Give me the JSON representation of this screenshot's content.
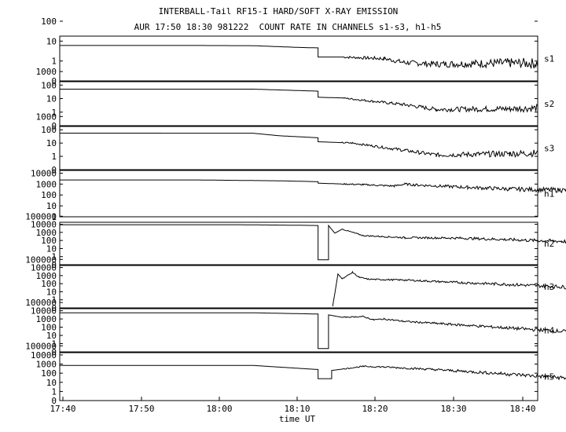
{
  "chart_data": {
    "type": "line",
    "title": "INTERBALL-Tail RF15-I HARD/SOFT X-RAY EMISSION",
    "subtitle": "AUR 17:50 18:30 981222  COUNT RATE IN CHANNELS s1-s3, h1-h5",
    "xlabel": "time UT",
    "x_ticks": [
      "17:40",
      "17:50",
      "18:00",
      "18:10",
      "18:20",
      "18:30",
      "18:40"
    ],
    "x_range_minutes": [
      17.0,
      62.7
    ],
    "grid": false,
    "series": [
      {
        "name": "s1",
        "y_scale": "log",
        "y_ticks": [
          "100",
          "10",
          "1",
          "0"
        ],
        "y_range_decades": [
          0,
          2.25
        ],
        "points": [
          [
            17,
            1.78
          ],
          [
            30,
            1.78
          ],
          [
            35.5,
            1.77
          ],
          [
            38,
            1.72
          ],
          [
            40,
            1.68
          ],
          [
            41.7,
            1.66
          ],
          [
            41.7,
            1.2
          ],
          [
            44,
            1.2
          ],
          [
            48,
            1.12
          ],
          [
            50,
            0.92
          ],
          [
            53,
            0.84
          ],
          [
            60,
            0.9
          ],
          [
            62.7,
            0.88
          ]
        ]
      },
      {
        "name": "s2",
        "y_scale": "log",
        "y_ticks": [
          "1000",
          "100",
          "10",
          "1",
          "0"
        ],
        "y_range_decades": [
          0,
          3.25
        ],
        "points": [
          [
            17,
            2.7
          ],
          [
            35.5,
            2.7
          ],
          [
            41.7,
            2.55
          ],
          [
            41.7,
            2.1
          ],
          [
            44,
            2.05
          ],
          [
            50,
            1.55
          ],
          [
            53,
            1.2
          ],
          [
            60,
            1.25
          ],
          [
            62.7,
            1.3
          ]
        ]
      },
      {
        "name": "s3",
        "y_scale": "log",
        "y_ticks": [
          "1000",
          "100",
          "10",
          "1",
          "0"
        ],
        "y_range_decades": [
          0,
          3.25
        ],
        "points": [
          [
            17,
            2.75
          ],
          [
            35.5,
            2.74
          ],
          [
            38,
            2.55
          ],
          [
            41.7,
            2.4
          ],
          [
            41.7,
            2.1
          ],
          [
            45,
            2.0
          ],
          [
            50,
            1.45
          ],
          [
            53,
            1.1
          ],
          [
            60,
            1.2
          ],
          [
            62.7,
            1.25
          ]
        ]
      },
      {
        "name": "h1",
        "y_scale": "log",
        "y_ticks": [
          "10000",
          "1000",
          "100",
          "10",
          "1"
        ],
        "y_range_decades": [
          0,
          4.25
        ],
        "points": [
          [
            17,
            3.38
          ],
          [
            30,
            3.38
          ],
          [
            38,
            3.3
          ],
          [
            41.7,
            3.22
          ],
          [
            41.7,
            3.08
          ],
          [
            46,
            2.95
          ],
          [
            49,
            2.82
          ],
          [
            50,
            3.0
          ],
          [
            51,
            2.92
          ],
          [
            56,
            2.7
          ],
          [
            60,
            2.55
          ],
          [
            65,
            2.45
          ],
          [
            70,
            2.3
          ],
          [
            73,
            2.35
          ],
          [
            78,
            2.1
          ],
          [
            82,
            1.95
          ]
        ]
      },
      {
        "name": "h2",
        "y_scale": "log",
        "y_ticks": [
          "100000",
          "10000",
          "1000",
          "100",
          "10",
          "1",
          "0"
        ],
        "y_range_decades": [
          0,
          5.25
        ],
        "points": [
          [
            17,
            4.95
          ],
          [
            34,
            4.95
          ],
          [
            40,
            4.88
          ],
          [
            41.7,
            4.85
          ],
          [
            41.7,
            0.6
          ],
          [
            42.7,
            0.6
          ],
          [
            42.7,
            4.85
          ],
          [
            43.3,
            3.9
          ],
          [
            44,
            4.4
          ],
          [
            46,
            3.6
          ],
          [
            50,
            3.35
          ],
          [
            55,
            3.3
          ],
          [
            60,
            3.1
          ],
          [
            65,
            2.9
          ],
          [
            70,
            2.6
          ],
          [
            72,
            2.5
          ],
          [
            76,
            2.4
          ],
          [
            78,
            2.25
          ],
          [
            82,
            1.9
          ]
        ]
      },
      {
        "name": "h3",
        "y_scale": "log",
        "y_ticks": [
          "100000",
          "10000",
          "1000",
          "100",
          "10",
          "1",
          "0"
        ],
        "y_range_decades": [
          0,
          5.25
        ],
        "points": [
          [
            43.1,
            0.2
          ],
          [
            43.6,
            4.2
          ],
          [
            44,
            3.6
          ],
          [
            45,
            4.4
          ],
          [
            45.6,
            3.8
          ],
          [
            46.5,
            3.55
          ],
          [
            48,
            3.5
          ],
          [
            50,
            3.45
          ],
          [
            55,
            3.15
          ],
          [
            60,
            2.9
          ],
          [
            65,
            2.6
          ],
          [
            70,
            2.4
          ],
          [
            75,
            2.1
          ],
          [
            80,
            1.85
          ],
          [
            82,
            1.75
          ]
        ]
      },
      {
        "name": "h4",
        "y_scale": "log",
        "y_ticks": [
          "100000",
          "10000",
          "1000",
          "100",
          "10",
          "1",
          "0"
        ],
        "y_range_decades": [
          0,
          5.25
        ],
        "points": [
          [
            17,
            4.75
          ],
          [
            35.5,
            4.75
          ],
          [
            41.7,
            4.6
          ],
          [
            41.7,
            0.4
          ],
          [
            42.7,
            0.4
          ],
          [
            42.7,
            4.5
          ],
          [
            44,
            4.2
          ],
          [
            46,
            4.3
          ],
          [
            47,
            3.9
          ],
          [
            48,
            4.0
          ],
          [
            50,
            3.7
          ],
          [
            55,
            3.3
          ],
          [
            60,
            2.9
          ],
          [
            65,
            2.5
          ],
          [
            70,
            2.25
          ],
          [
            75,
            2.0
          ],
          [
            80,
            1.8
          ],
          [
            82,
            1.75
          ]
        ]
      },
      {
        "name": "h5",
        "y_scale": "log",
        "y_ticks": [
          "100000",
          "10000",
          "1000",
          "100",
          "10",
          "1",
          "0"
        ],
        "y_range_decades": [
          0,
          5.25
        ],
        "points": [
          [
            17,
            3.85
          ],
          [
            35.5,
            3.85
          ],
          [
            41.7,
            3.4
          ],
          [
            41.7,
            2.4
          ],
          [
            43,
            2.4
          ],
          [
            43,
            3.3
          ],
          [
            46,
            3.75
          ],
          [
            48,
            3.68
          ],
          [
            52,
            3.45
          ],
          [
            55,
            3.25
          ],
          [
            60,
            2.9
          ],
          [
            65,
            2.5
          ],
          [
            70,
            2.15
          ],
          [
            75,
            1.9
          ],
          [
            80,
            1.7
          ],
          [
            82,
            1.65
          ]
        ]
      }
    ]
  }
}
